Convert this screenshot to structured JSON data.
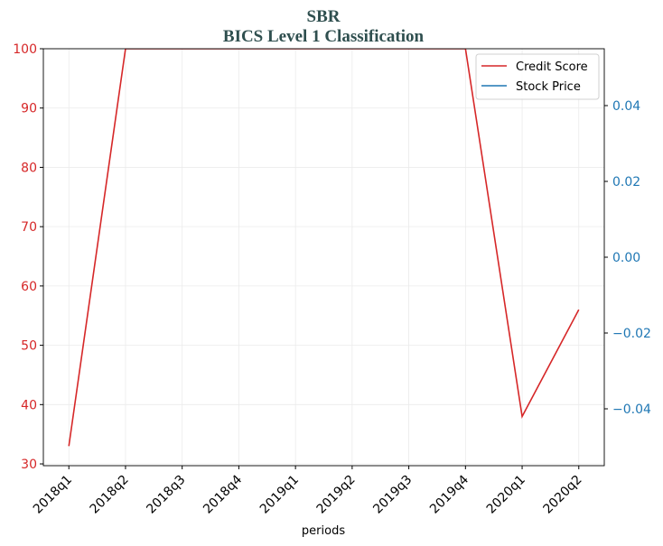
{
  "chart_data": {
    "type": "line",
    "title": "SBR",
    "subtitle": "BICS Level 1 Classification",
    "xlabel": "periods",
    "categories": [
      "2018q1",
      "2018q2",
      "2018q3",
      "2018q4",
      "2019q1",
      "2019q2",
      "2019q3",
      "2019q4",
      "2020q1",
      "2020q2"
    ],
    "series": [
      {
        "name": "Credit Score",
        "color": "#d62728",
        "values": [
          33,
          100,
          100,
          100,
          100,
          100,
          100,
          100,
          38,
          56
        ]
      },
      {
        "name": "Stock Price",
        "color": "#1f77b4",
        "axis": "y2",
        "values": [
          null,
          null,
          null,
          null,
          null,
          null,
          null,
          null,
          null,
          null
        ]
      }
    ],
    "ylim": [
      29.7,
      100
    ],
    "yticks": [
      30,
      40,
      50,
      60,
      70,
      80,
      90,
      100
    ],
    "y2lim": [
      -0.055,
      0.055
    ],
    "y2ticks": [
      {
        "value": -0.04,
        "label": "−0.04"
      },
      {
        "value": -0.02,
        "label": "−0.02"
      },
      {
        "value": 0,
        "label": "0.00"
      },
      {
        "value": 0.02,
        "label": "0.02"
      },
      {
        "value": 0.04,
        "label": "0.04"
      }
    ],
    "grid": true,
    "legend": "upper right"
  }
}
